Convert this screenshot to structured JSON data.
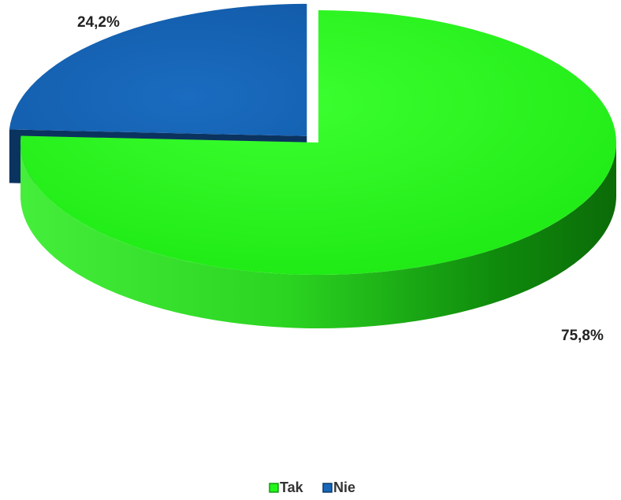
{
  "chart_data": {
    "type": "pie",
    "style": "3d-exploded",
    "title": "",
    "categories": [
      "Tak",
      "Nie"
    ],
    "values": [
      75.8,
      24.2
    ],
    "data_labels": [
      "75,8%",
      "24,2%"
    ],
    "colors": {
      "Tak": "#22f51a",
      "Nie": "#1866b8"
    },
    "side_colors": {
      "Tak": "#149b10",
      "Nie": "#0d3a6a"
    },
    "legend": {
      "position": "bottom",
      "entries": [
        "Tak",
        "Nie"
      ]
    }
  }
}
